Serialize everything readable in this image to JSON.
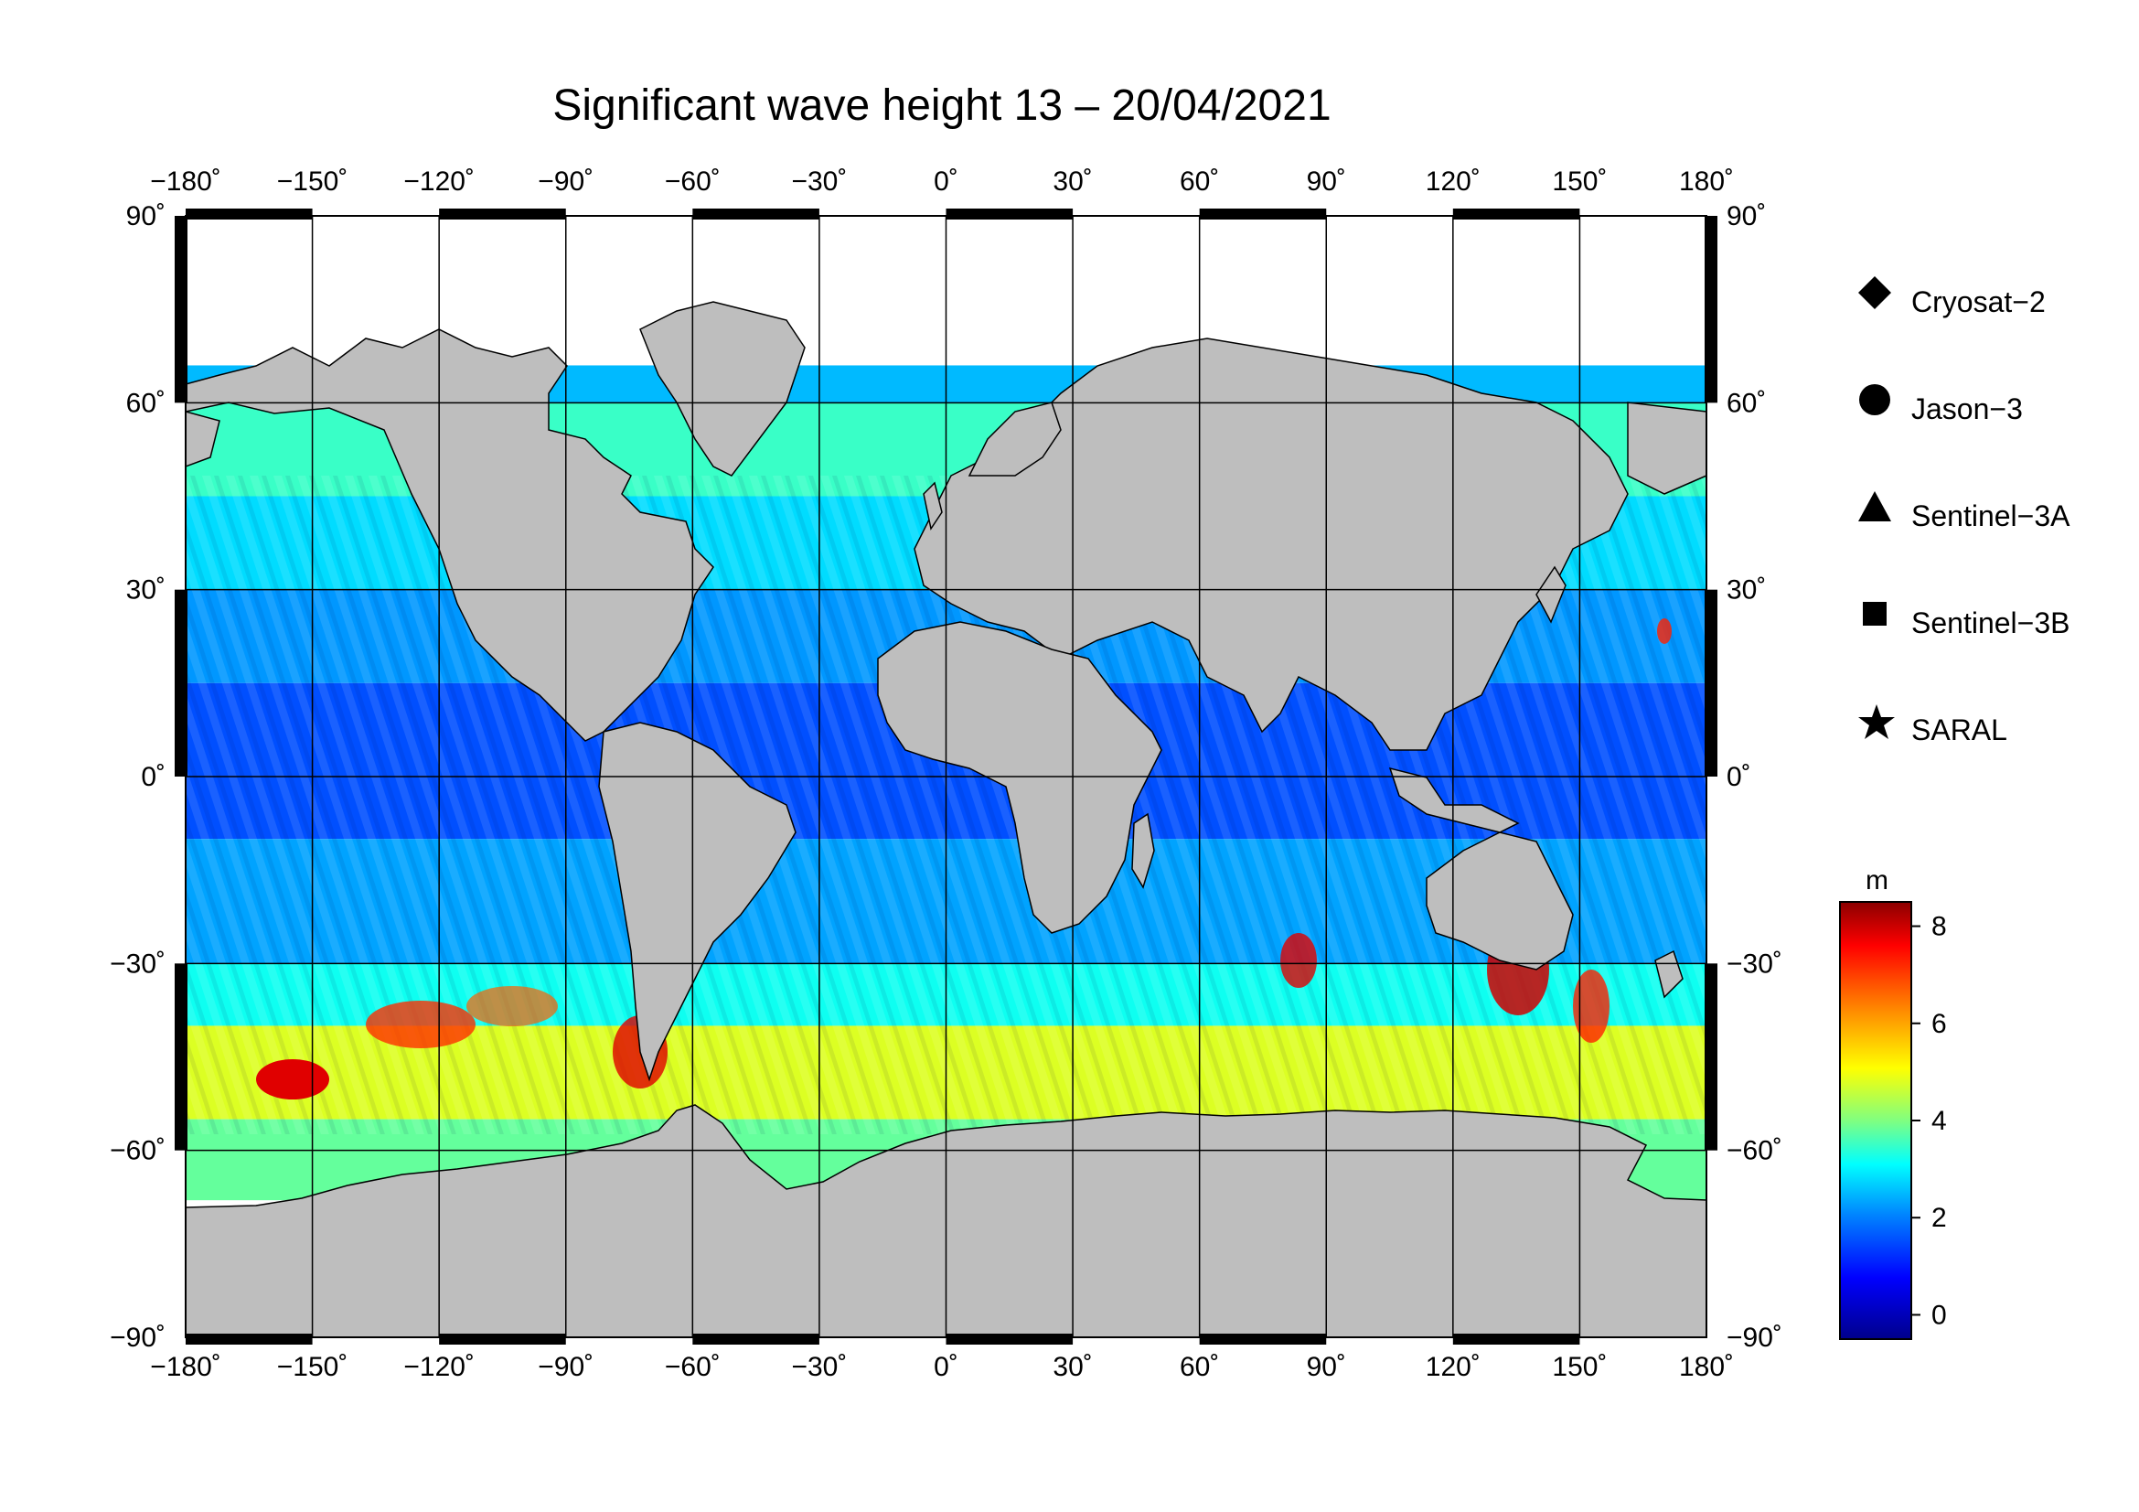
{
  "title": "Significant wave height 13 – 20/04/2021",
  "map": {
    "lon_ticks": [
      "−180˚",
      "−150˚",
      "−120˚",
      "−90˚",
      "−60˚",
      "−30˚",
      "0˚",
      "30˚",
      "60˚",
      "90˚",
      "120˚",
      "150˚",
      "180˚"
    ],
    "lat_ticks": [
      "90˚",
      "60˚",
      "30˚",
      "0˚",
      "−30˚",
      "−60˚",
      "−90˚"
    ],
    "land_color": "#bebebe",
    "ice_color": "#ffffff"
  },
  "legend": {
    "items": [
      {
        "label": "Cryosat−2",
        "symbol": "diamond"
      },
      {
        "label": "Jason−3",
        "symbol": "circle"
      },
      {
        "label": "Sentinel−3A",
        "symbol": "triangle"
      },
      {
        "label": "Sentinel−3B",
        "symbol": "square"
      },
      {
        "label": "SARAL",
        "symbol": "star"
      }
    ]
  },
  "colorbar": {
    "unit": "m",
    "ticks": [
      "8",
      "6",
      "4",
      "2",
      "0"
    ],
    "colors": [
      "#8b0000",
      "#ff0000",
      "#ff8c00",
      "#ffff00",
      "#80ff80",
      "#00ffff",
      "#0080ff",
      "#0000ff",
      "#00008b"
    ]
  },
  "chart_data": {
    "type": "heatmap",
    "title": "Significant wave height 13 – 20/04/2021",
    "variable": "significant wave height",
    "unit": "m",
    "xlim": [
      -180,
      180
    ],
    "ylim": [
      -90,
      90
    ],
    "color_range": [
      -0.5,
      8.5
    ],
    "zonal_bands": [
      {
        "lat": [
          60,
          66
        ],
        "value": 2.5
      },
      {
        "lat": [
          45,
          60
        ],
        "value": 3.5
      },
      {
        "lat": [
          30,
          45
        ],
        "value": 2.8
      },
      {
        "lat": [
          15,
          30
        ],
        "value": 2.2
      },
      {
        "lat": [
          -10,
          15
        ],
        "value": 1.5
      },
      {
        "lat": [
          -30,
          -10
        ],
        "value": 2.3
      },
      {
        "lat": [
          -40,
          -30
        ],
        "value": 3.2
      },
      {
        "lat": [
          -55,
          -40
        ],
        "value": 4.8
      },
      {
        "lat": [
          -68,
          -55
        ],
        "value": 3.8
      }
    ]
  }
}
